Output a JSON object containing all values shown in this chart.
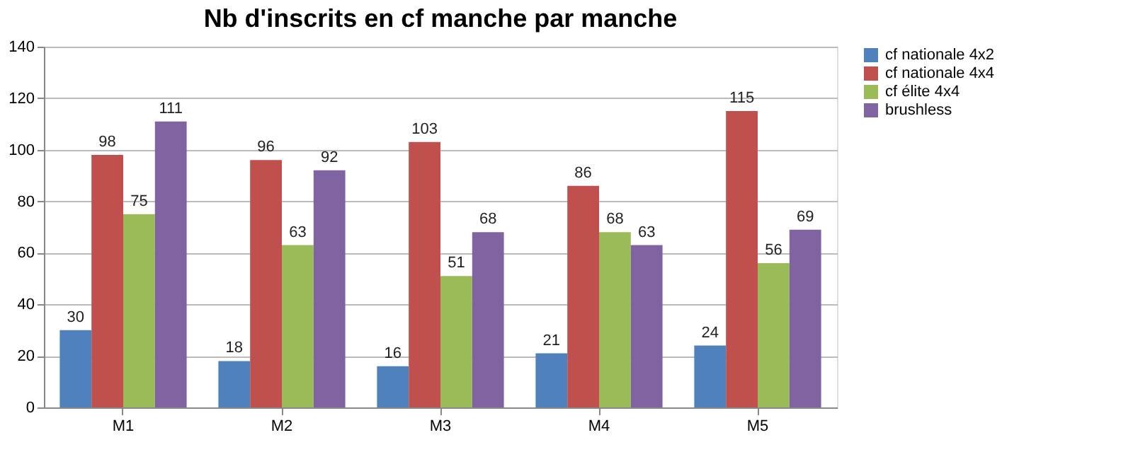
{
  "chart_data": {
    "type": "bar",
    "title": "Nb d'inscrits en cf manche par manche",
    "categories": [
      "M1",
      "M2",
      "M3",
      "M4",
      "M5"
    ],
    "series": [
      {
        "name": "cf nationale 4x2",
        "color": "#4f81bd",
        "values": [
          30,
          18,
          16,
          21,
          24
        ]
      },
      {
        "name": "cf nationale 4x4",
        "color": "#c0504d",
        "values": [
          98,
          96,
          103,
          86,
          115
        ]
      },
      {
        "name": "cf élite 4x4",
        "color": "#9bbb59",
        "values": [
          75,
          63,
          51,
          68,
          56
        ]
      },
      {
        "name": "brushless",
        "color": "#8064a2",
        "values": [
          111,
          92,
          68,
          63,
          69
        ]
      }
    ],
    "ylim": [
      0,
      140
    ],
    "yticks": [
      0,
      20,
      40,
      60,
      80,
      100,
      120,
      140
    ],
    "grid": "y",
    "legend": "right",
    "data_labels": true
  }
}
